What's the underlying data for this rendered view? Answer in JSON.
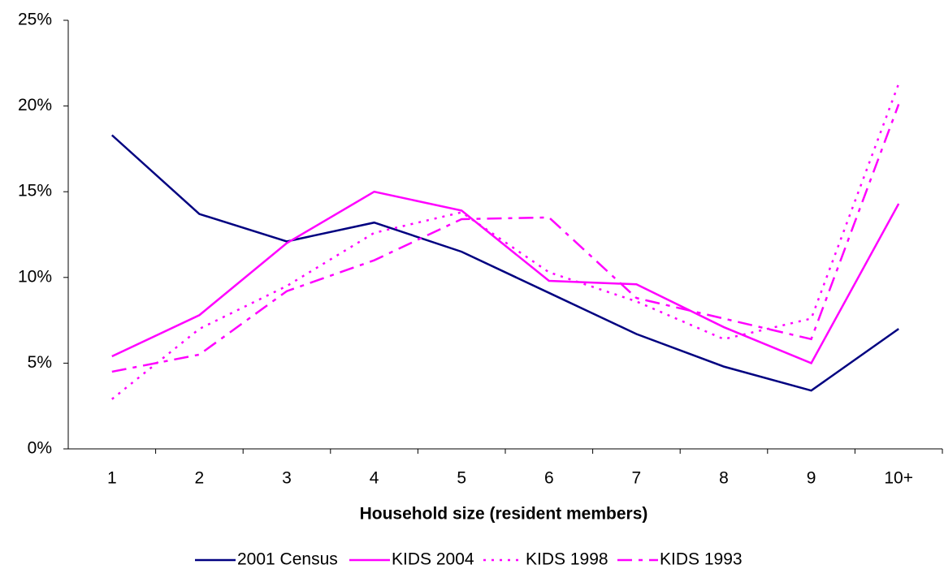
{
  "chart_data": {
    "type": "line",
    "x_label": "Household size (resident members)",
    "categories": [
      "1",
      "2",
      "3",
      "4",
      "5",
      "6",
      "7",
      "8",
      "9",
      "10+"
    ],
    "ylim": [
      0,
      25
    ],
    "yticks": [
      {
        "value": 0,
        "label": "0%"
      },
      {
        "value": 5,
        "label": "5%"
      },
      {
        "value": 10,
        "label": "10%"
      },
      {
        "value": 15,
        "label": "15%"
      },
      {
        "value": 20,
        "label": "20%"
      },
      {
        "value": 25,
        "label": "25%"
      }
    ],
    "legend": "bottom",
    "series": [
      {
        "name": "2001 Census",
        "color": "#000080",
        "dash": "solid",
        "values": [
          18.3,
          13.7,
          12.1,
          13.2,
          11.5,
          9.1,
          6.7,
          4.8,
          3.4,
          7.0
        ]
      },
      {
        "name": "KIDS 2004",
        "color": "#ff00ff",
        "dash": "solid",
        "values": [
          5.4,
          7.8,
          12.0,
          15.0,
          13.9,
          9.8,
          9.6,
          7.1,
          5.0,
          14.3
        ]
      },
      {
        "name": "KIDS 1998",
        "color": "#ff00ff",
        "dash": "dotted",
        "values": [
          2.9,
          7.0,
          9.5,
          12.6,
          13.8,
          10.3,
          8.6,
          6.4,
          7.6,
          21.3
        ]
      },
      {
        "name": "KIDS 1993",
        "color": "#ff00ff",
        "dash": "dashed",
        "values": [
          4.5,
          5.5,
          9.2,
          11.0,
          13.4,
          13.5,
          8.8,
          7.6,
          6.4,
          20.1
        ]
      }
    ]
  }
}
